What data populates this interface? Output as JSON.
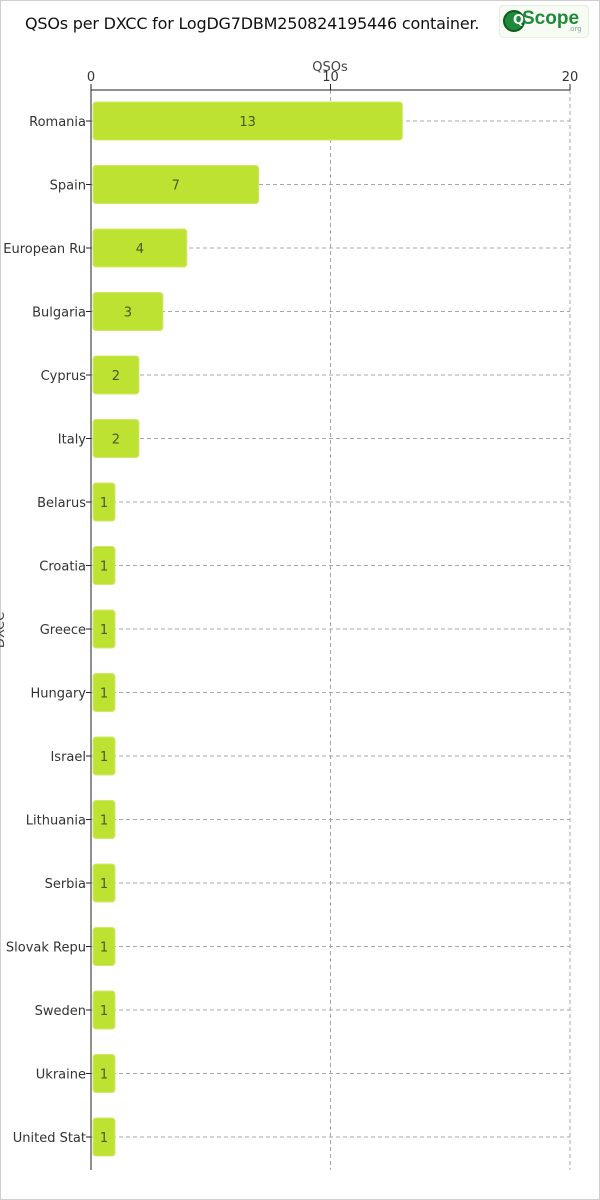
{
  "title": "QSOs per DXCC for LogDG7DBM250824195446 container.",
  "logo": {
    "text": "Scope",
    "mark": "Q",
    "sub": ".org"
  },
  "colors": {
    "bar": "#bde232",
    "bar_stroke": "#cfe86a",
    "grid": "#a8a8a8",
    "axis": "#222222"
  },
  "chart_data": {
    "type": "bar",
    "orientation": "horizontal",
    "xlabel": "QSOs",
    "ylabel": "DXCC",
    "xlim": [
      0,
      20
    ],
    "xticks": [
      0,
      10,
      20
    ],
    "grid": true,
    "categories": [
      "Romania",
      "Spain",
      "European Ru",
      "Bulgaria",
      "Cyprus",
      "Italy",
      "Belarus",
      "Croatia",
      "Greece",
      "Hungary",
      "Israel",
      "Lithuania",
      "Serbia",
      "Slovak Repu",
      "Sweden",
      "Ukraine",
      "United Stat"
    ],
    "values": [
      13,
      7,
      4,
      3,
      2,
      2,
      1,
      1,
      1,
      1,
      1,
      1,
      1,
      1,
      1,
      1,
      1
    ]
  }
}
